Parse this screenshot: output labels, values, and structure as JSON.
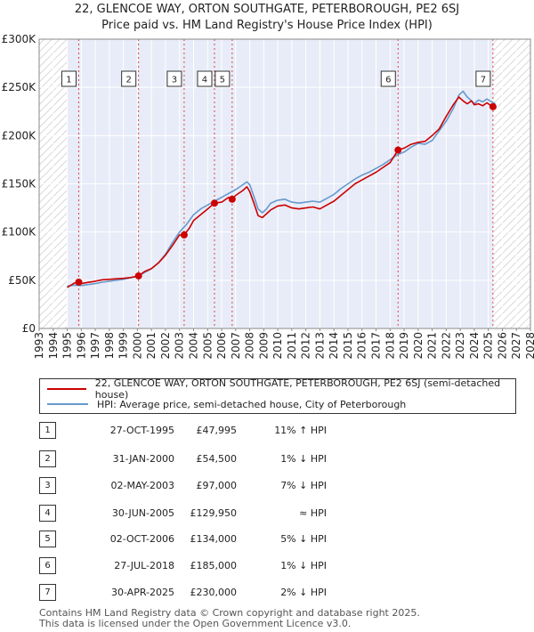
{
  "title_line1": "22, GLENCOE WAY, ORTON SOUTHGATE, PETERBOROUGH, PE2 6SJ",
  "title_line2": "Price paid vs. HM Land Registry's House Price Index (HPI)",
  "colors": {
    "property": "#cc0000",
    "hpi": "#6699cc",
    "shade": "#e8ecf8",
    "grid": "#ffffff",
    "vline": "#dd4444"
  },
  "chart_data": {
    "type": "line",
    "xlim": [
      1993,
      2028
    ],
    "ylim": [
      0,
      300000
    ],
    "y_ticks": [
      0,
      50000,
      100000,
      150000,
      200000,
      250000,
      300000
    ],
    "y_tick_labels": [
      "£0",
      "£50K",
      "£100K",
      "£150K",
      "£200K",
      "£250K",
      "£300K"
    ],
    "x_ticks": [
      1993,
      1994,
      1995,
      1996,
      1997,
      1998,
      1999,
      2000,
      2001,
      2002,
      2003,
      2004,
      2005,
      2006,
      2007,
      2008,
      2009,
      2010,
      2011,
      2012,
      2013,
      2014,
      2015,
      2016,
      2017,
      2018,
      2019,
      2020,
      2021,
      2022,
      2023,
      2024,
      2025,
      2026,
      2027,
      2028
    ],
    "shaded_ranges": [
      [
        1995.0,
        2025.33
      ]
    ],
    "hatched_ranges": [
      [
        1993,
        1995.0
      ],
      [
        2025.33,
        2028
      ]
    ],
    "series": [
      {
        "name": "22, GLENCOE WAY, ORTON SOUTHGATE, PETERBOROUGH, PE2 6SJ (semi-detached house)",
        "x": [
          1995.0,
          1995.5,
          1995.82,
          1996.0,
          1996.5,
          1997.0,
          1997.5,
          1998.0,
          1998.5,
          1999.0,
          1999.5,
          2000.08,
          2000.5,
          2001.0,
          2001.5,
          2002.0,
          2002.5,
          2003.0,
          2003.33,
          2003.7,
          2004.0,
          2004.5,
          2005.0,
          2005.49,
          2006.0,
          2006.5,
          2006.75,
          2007.0,
          2007.5,
          2007.8,
          2008.0,
          2008.3,
          2008.6,
          2008.9,
          2009.2,
          2009.5,
          2010.0,
          2010.5,
          2011.0,
          2011.5,
          2012.0,
          2012.5,
          2013.0,
          2013.5,
          2014.0,
          2014.5,
          2015.0,
          2015.5,
          2016.0,
          2016.5,
          2017.0,
          2017.5,
          2018.0,
          2018.57,
          2019.0,
          2019.5,
          2020.0,
          2020.5,
          2021.0,
          2021.5,
          2022.0,
          2022.5,
          2022.9,
          2023.2,
          2023.5,
          2023.8,
          2024.0,
          2024.3,
          2024.6,
          2024.9,
          2025.1,
          2025.33,
          2025.5
        ],
        "y": [
          42500,
          47000,
          47995,
          46500,
          47800,
          49000,
          50500,
          51000,
          51500,
          52000,
          52800,
          54500,
          59000,
          62000,
          68000,
          76000,
          86000,
          97000,
          97000,
          104000,
          112000,
          118000,
          124000,
          129950,
          131000,
          136000,
          134000,
          138000,
          143000,
          147000,
          142000,
          130000,
          117000,
          115000,
          119000,
          123000,
          127000,
          128000,
          125000,
          124000,
          125000,
          126000,
          124000,
          128000,
          132000,
          138000,
          144000,
          150000,
          154000,
          158000,
          162000,
          167000,
          172000,
          185000,
          187000,
          191000,
          193000,
          194000,
          200000,
          207000,
          220000,
          232000,
          240000,
          236000,
          233000,
          236000,
          232000,
          233000,
          231000,
          234000,
          232000,
          230000,
          231000
        ],
        "color": "#cc0000"
      },
      {
        "name": "HPI: Average price, semi-detached house, City of Peterborough",
        "x": [
          1995.0,
          1995.5,
          1996.0,
          1996.5,
          1997.0,
          1997.5,
          1998.0,
          1998.5,
          1999.0,
          1999.5,
          2000.0,
          2000.5,
          2001.0,
          2001.5,
          2002.0,
          2002.5,
          2003.0,
          2003.5,
          2004.0,
          2004.5,
          2005.0,
          2005.5,
          2006.0,
          2006.5,
          2007.0,
          2007.5,
          2007.8,
          2008.0,
          2008.3,
          2008.6,
          2008.9,
          2009.2,
          2009.5,
          2010.0,
          2010.5,
          2011.0,
          2011.5,
          2012.0,
          2012.5,
          2013.0,
          2013.5,
          2014.0,
          2014.5,
          2015.0,
          2015.5,
          2016.0,
          2016.5,
          2017.0,
          2017.5,
          2018.0,
          2018.5,
          2019.0,
          2019.5,
          2020.0,
          2020.5,
          2021.0,
          2021.5,
          2022.0,
          2022.5,
          2022.9,
          2023.2,
          2023.5,
          2023.8,
          2024.0,
          2024.3,
          2024.6,
          2024.9,
          2025.1,
          2025.33,
          2025.5
        ],
        "y": [
          44000,
          45000,
          44500,
          45500,
          46500,
          48000,
          49000,
          50000,
          51000,
          52500,
          54000,
          58000,
          62000,
          68000,
          77000,
          89000,
          100000,
          108000,
          118000,
          124000,
          128000,
          132000,
          136000,
          140000,
          144000,
          149000,
          152000,
          149000,
          137000,
          124000,
          120000,
          124000,
          130000,
          133000,
          134000,
          131000,
          130000,
          131000,
          132000,
          131000,
          135000,
          139000,
          145000,
          150000,
          155000,
          159000,
          162000,
          166000,
          170000,
          175000,
          180000,
          183000,
          188000,
          192000,
          191000,
          195000,
          205000,
          215000,
          228000,
          242000,
          246000,
          240000,
          236000,
          233000,
          237000,
          235000,
          238000,
          236000,
          234000,
          233000
        ],
        "color": "#6699cc"
      }
    ],
    "sales": [
      {
        "label": "1",
        "x": 1995.82,
        "y": 47995
      },
      {
        "label": "2",
        "x": 2000.08,
        "y": 54500
      },
      {
        "label": "3",
        "x": 2003.33,
        "y": 97000
      },
      {
        "label": "4",
        "x": 2005.49,
        "y": 129950
      },
      {
        "label": "5",
        "x": 2006.75,
        "y": 134000
      },
      {
        "label": "6",
        "x": 2018.57,
        "y": 185000
      },
      {
        "label": "7",
        "x": 2025.33,
        "y": 230000
      }
    ]
  },
  "legend": {
    "property": "22, GLENCOE WAY, ORTON SOUTHGATE, PETERBOROUGH, PE2 6SJ (semi-detached house)",
    "hpi": "HPI: Average price, semi-detached house, City of Peterborough"
  },
  "transactions": [
    {
      "num": "1",
      "date": "27-OCT-1995",
      "price": "£47,995",
      "rel": "11% ↑ HPI"
    },
    {
      "num": "2",
      "date": "31-JAN-2000",
      "price": "£54,500",
      "rel": "1% ↓ HPI"
    },
    {
      "num": "3",
      "date": "02-MAY-2003",
      "price": "£97,000",
      "rel": "7% ↓ HPI"
    },
    {
      "num": "4",
      "date": "30-JUN-2005",
      "price": "£129,950",
      "rel": "≈ HPI"
    },
    {
      "num": "5",
      "date": "02-OCT-2006",
      "price": "£134,000",
      "rel": "5% ↓ HPI"
    },
    {
      "num": "6",
      "date": "27-JUL-2018",
      "price": "£185,000",
      "rel": "1% ↓ HPI"
    },
    {
      "num": "7",
      "date": "30-APR-2025",
      "price": "£230,000",
      "rel": "2% ↓ HPI"
    }
  ],
  "footer_line1": "Contains HM Land Registry data © Crown copyright and database right 2025.",
  "footer_line2": "This data is licensed under the Open Government Licence v3.0."
}
